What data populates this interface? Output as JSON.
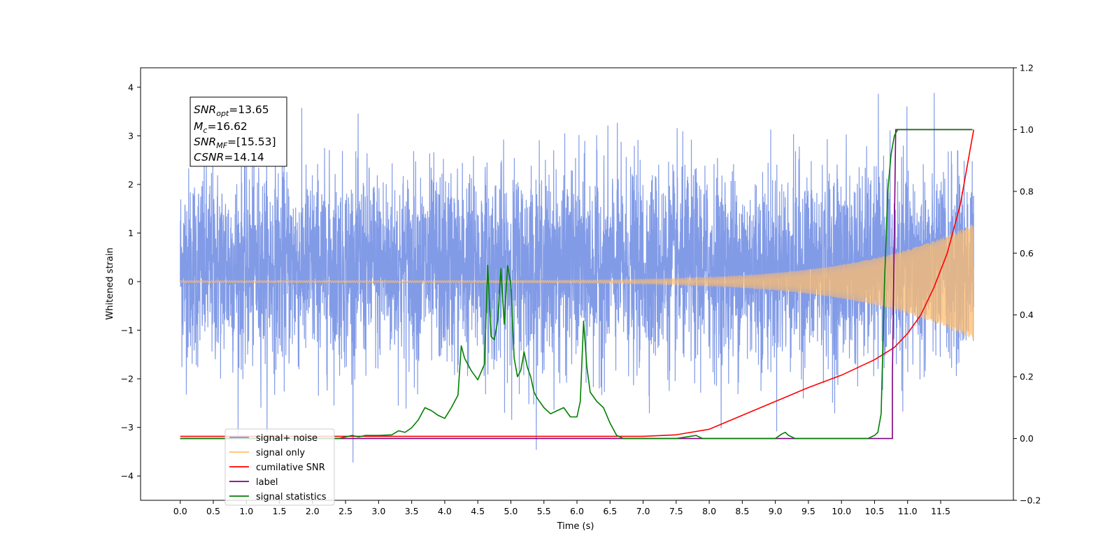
{
  "chart_data": {
    "type": "line",
    "xlabel": "Time (s)",
    "ylabel": "Whitened strain",
    "xlim": [
      -0.6,
      12.6
    ],
    "ylim": [
      -4.5,
      4.4
    ],
    "y2lim": [
      -0.2,
      1.2
    ],
    "x_ticks": [
      "0.0",
      "0.5",
      "1.0",
      "1.5",
      "2.0",
      "2.5",
      "3.0",
      "3.5",
      "4.0",
      "4.5",
      "5.0",
      "5.5",
      "6.0",
      "6.5",
      "7.0",
      "7.5",
      "8.0",
      "8.5",
      "9.0",
      "9.5",
      "10.0",
      "10.5",
      "11.0",
      "11.5"
    ],
    "y_ticks": [
      "−4",
      "−3",
      "−2",
      "−1",
      "0",
      "1",
      "2",
      "3",
      "4"
    ],
    "y2_ticks": [
      "−0.2",
      "0.0",
      "0.2",
      "0.4",
      "0.6",
      "0.8",
      "1.0",
      "1.2"
    ],
    "annotation": {
      "snr_opt": {
        "sym": "SNR",
        "sub": "opt",
        "val": "=13.65"
      },
      "mc": {
        "sym": "M",
        "sub": "c",
        "val": "=16.62"
      },
      "snr_mf": {
        "sym": "SNR",
        "sub": "MF",
        "val": "=[15.53]"
      },
      "csnr": {
        "sym": "CSNR",
        "val": "=14.14"
      }
    },
    "legend_position": "lower left",
    "series": [
      {
        "name": "signal+ noise",
        "color": "#7b96e6",
        "axis": "left",
        "kind": "noisy waveform",
        "t_range": [
          0.0,
          12.0
        ],
        "std": 1.0,
        "mean": 0.3,
        "range": [
          -4.1,
          4.0
        ]
      },
      {
        "name": "signal only",
        "color": "#ffbe6e",
        "axis": "left",
        "kind": "chirp",
        "t_range": [
          0.0,
          12.0
        ],
        "amplitude_start": 0.02,
        "amplitude_end": 1.2
      },
      {
        "name": "cumilative SNR",
        "color": "#ff0000",
        "axis": "right",
        "x": [
          0.0,
          7.0,
          7.5,
          8.0,
          8.5,
          9.0,
          9.5,
          10.0,
          10.5,
          10.8,
          11.0,
          11.2,
          11.4,
          11.6,
          11.8,
          12.0
        ],
        "y": [
          0.007,
          0.007,
          0.012,
          0.03,
          0.075,
          0.12,
          0.165,
          0.205,
          0.255,
          0.295,
          0.34,
          0.4,
          0.49,
          0.6,
          0.76,
          1.0
        ]
      },
      {
        "name": "label",
        "color": "#800080",
        "axis": "right",
        "x": [
          0.0,
          10.77,
          10.77,
          10.82,
          11.98
        ],
        "y": [
          0.0,
          0.0,
          0.2,
          1.0,
          1.0
        ]
      },
      {
        "name": "signal statistics",
        "color": "#008000",
        "axis": "right",
        "x": [
          0.0,
          2.4,
          2.6,
          2.7,
          2.8,
          3.0,
          3.2,
          3.3,
          3.4,
          3.5,
          3.6,
          3.7,
          3.8,
          3.9,
          4.0,
          4.1,
          4.2,
          4.25,
          4.3,
          4.35,
          4.4,
          4.5,
          4.6,
          4.65,
          4.7,
          4.75,
          4.8,
          4.85,
          4.9,
          4.95,
          5.0,
          5.05,
          5.1,
          5.15,
          5.2,
          5.25,
          5.3,
          5.35,
          5.4,
          5.5,
          5.6,
          5.7,
          5.8,
          5.9,
          6.0,
          6.05,
          6.1,
          6.15,
          6.2,
          6.3,
          6.4,
          6.5,
          6.6,
          6.7,
          6.8,
          7.0,
          7.5,
          7.8,
          7.9,
          8.0,
          9.0,
          9.1,
          9.15,
          9.2,
          9.3,
          10.4,
          10.5,
          10.55,
          10.6,
          10.65,
          10.7,
          10.75,
          10.8,
          10.85,
          10.9,
          10.95,
          11.0,
          11.5,
          11.98
        ],
        "y": [
          0.0,
          0.0,
          0.01,
          0.005,
          0.01,
          0.01,
          0.012,
          0.025,
          0.02,
          0.035,
          0.06,
          0.1,
          0.09,
          0.075,
          0.065,
          0.1,
          0.14,
          0.3,
          0.26,
          0.24,
          0.22,
          0.19,
          0.24,
          0.56,
          0.33,
          0.32,
          0.38,
          0.55,
          0.37,
          0.56,
          0.5,
          0.26,
          0.2,
          0.22,
          0.28,
          0.23,
          0.2,
          0.15,
          0.13,
          0.1,
          0.08,
          0.09,
          0.1,
          0.07,
          0.07,
          0.12,
          0.38,
          0.23,
          0.15,
          0.12,
          0.1,
          0.05,
          0.01,
          0.0,
          0.0,
          0.0,
          0.0,
          0.01,
          0.0,
          0.0,
          0.0,
          0.015,
          0.02,
          0.01,
          0.0,
          0.0,
          0.01,
          0.02,
          0.08,
          0.5,
          0.8,
          0.92,
          0.98,
          1.0,
          1.0,
          1.0,
          1.0,
          1.0,
          1.0
        ]
      }
    ]
  }
}
